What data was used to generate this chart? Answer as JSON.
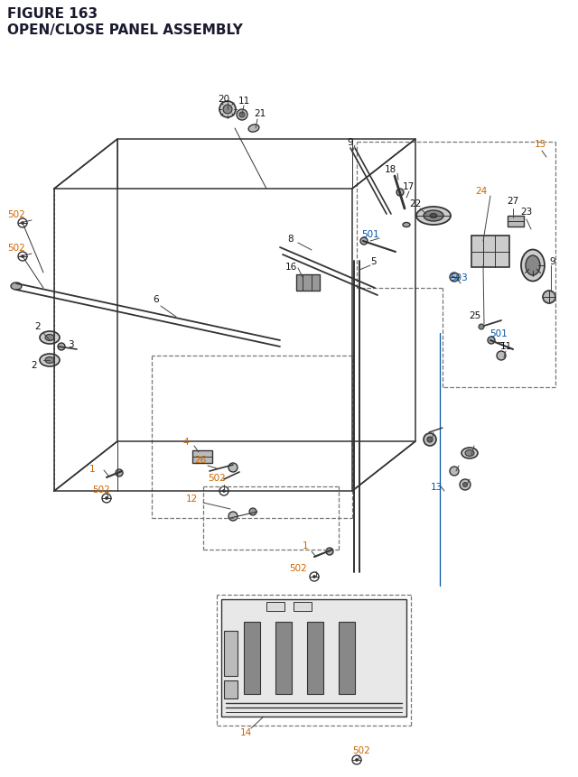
{
  "title_line1": "FIGURE 163",
  "title_line2": "OPEN/CLOSE PANEL ASSEMBLY",
  "title_color": "#1a1a2e",
  "title_fontsize": 11,
  "bg_color": "#ffffff",
  "oc": "#cc6600",
  "bc": "#0055aa",
  "lc": "#111111",
  "fs": 7.5,
  "fig_width": 6.4,
  "fig_height": 8.62
}
